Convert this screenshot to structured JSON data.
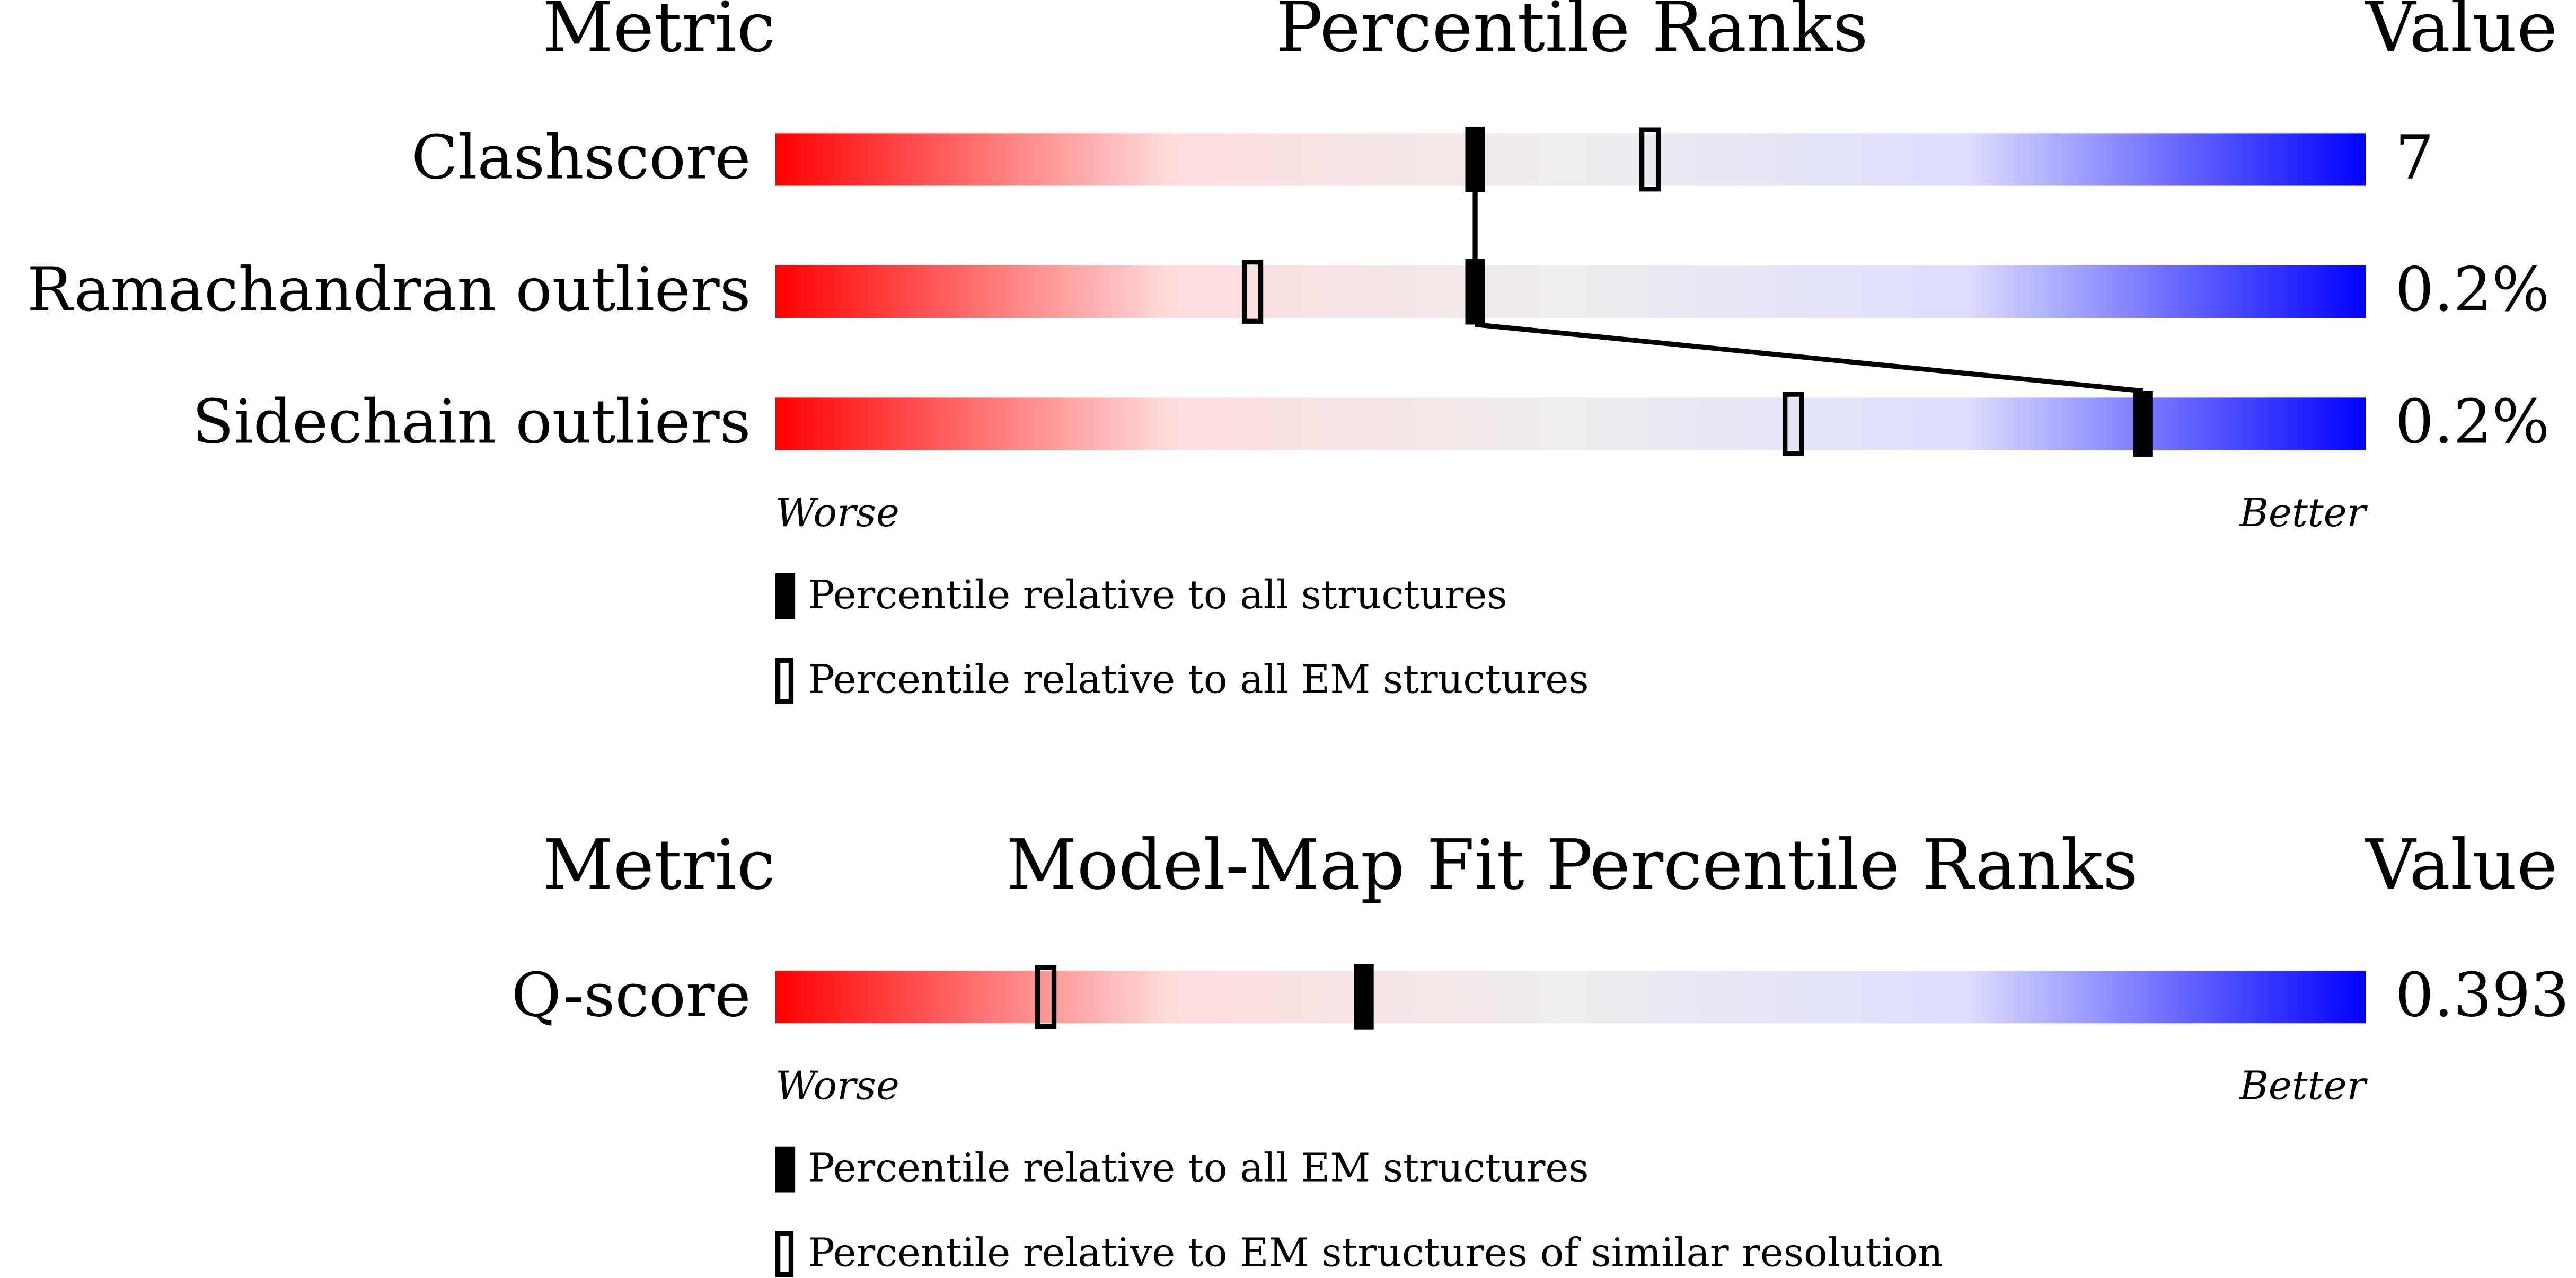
{
  "chart_data": [
    {
      "type": "percentile-slider",
      "metric_header": "Metric",
      "title": "Percentile Ranks",
      "value_header": "Value",
      "categories": [
        "Clashscore",
        "Ramachandran outliers",
        "Sidechain outliers"
      ],
      "metric_values": [
        "7",
        "0.2%",
        "0.2%"
      ],
      "series": [
        {
          "name": "Percentile relative to all structures",
          "style": "filled",
          "color": "#000000",
          "values": [
            44,
            44,
            86
          ]
        },
        {
          "name": "Percentile relative to all EM structures",
          "style": "open",
          "color": "#000000",
          "values": [
            55,
            30,
            64
          ]
        }
      ],
      "xlim": [
        0,
        100
      ],
      "worse_label": "Worse",
      "better_label": "Better",
      "gradient": [
        "#ff0000",
        "#ffdddd",
        "#eeeeee",
        "#ddddff",
        "#0000ff"
      ]
    },
    {
      "type": "percentile-slider",
      "metric_header": "Metric",
      "title": "Model-Map Fit Percentile Ranks",
      "value_header": "Value",
      "categories": [
        "Q-score"
      ],
      "metric_values": [
        "0.393"
      ],
      "series": [
        {
          "name": "Percentile relative to all EM structures",
          "style": "filled",
          "color": "#000000",
          "values": [
            37
          ]
        },
        {
          "name": "Percentile relative to EM structures of similar resolution",
          "style": "open",
          "color": "#000000",
          "values": [
            17
          ]
        }
      ],
      "xlim": [
        0,
        100
      ],
      "worse_label": "Worse",
      "better_label": "Better",
      "gradient": [
        "#ff0000",
        "#ffdddd",
        "#eeeeee",
        "#ddddff",
        "#0000ff"
      ]
    }
  ]
}
